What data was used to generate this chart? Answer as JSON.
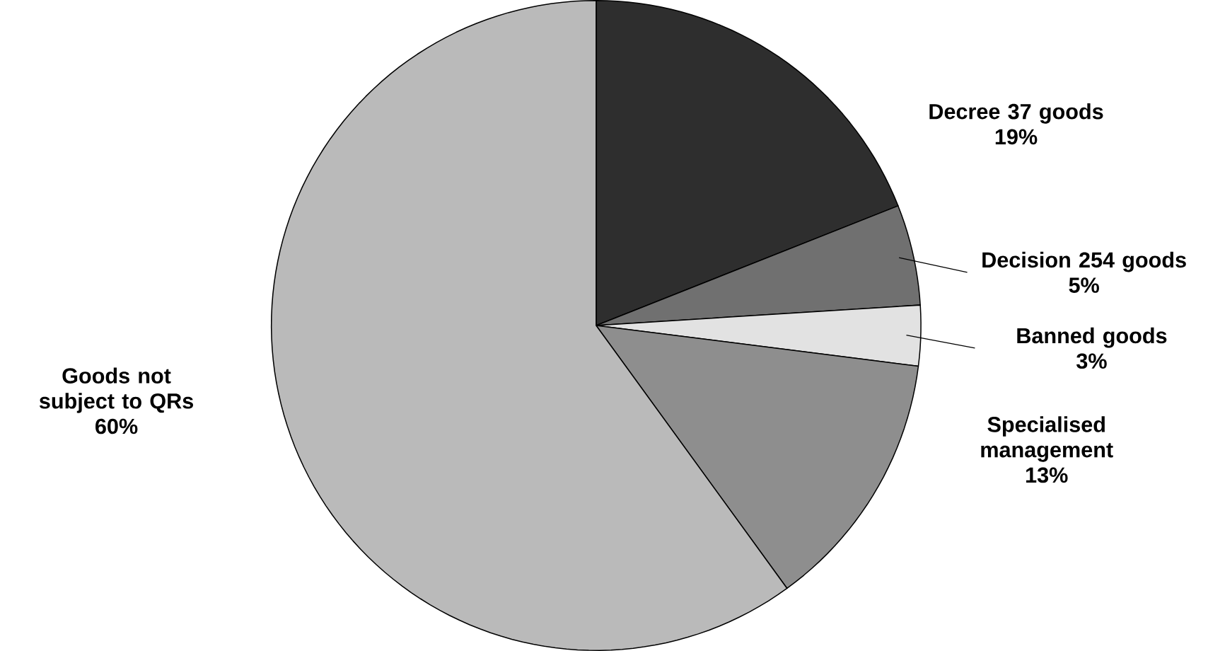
{
  "chart_data": {
    "type": "pie",
    "categories": [
      "Decree 37 goods",
      "Decision 254 goods",
      "Banned goods",
      "Specialised management",
      "Goods not subject to QRs"
    ],
    "values": [
      19,
      5,
      3,
      13,
      60
    ],
    "value_labels": [
      "19%",
      "5%",
      "3%",
      "13%",
      "60%"
    ],
    "colors": [
      "#2e2e2e",
      "#707070",
      "#e2e2e2",
      "#8e8e8e",
      "#bababa"
    ]
  }
}
